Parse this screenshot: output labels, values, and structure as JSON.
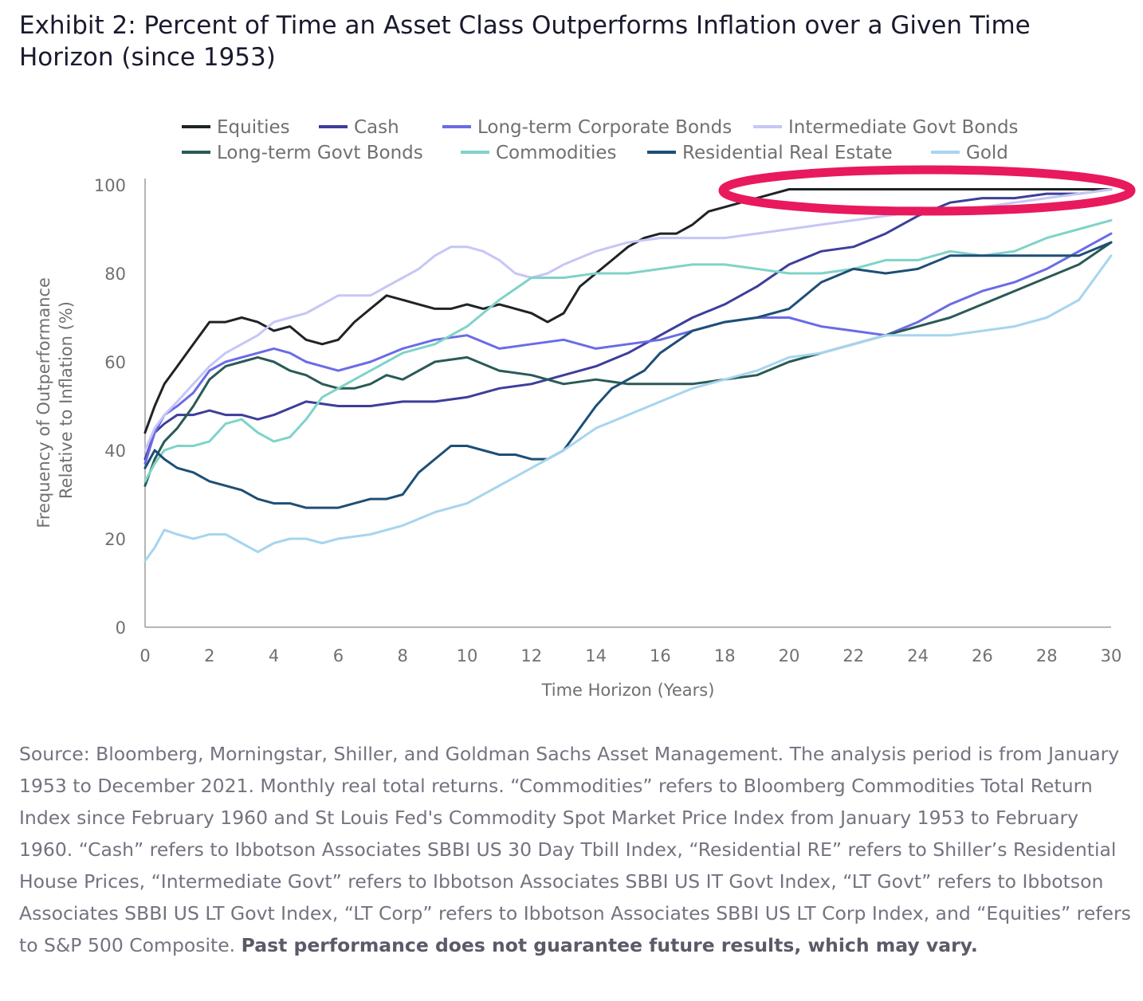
{
  "title": "Exhibit 2: Percent of Time an Asset Class Outperforms Inflation over a Given Time Horizon (since 1953)",
  "source_text": "Source: Bloomberg, Morningstar, Shiller, and Goldman Sachs Asset Management. The analysis period is from January 1953 to December 2021. Monthly real total returns. “Commodities” refers to Bloomberg Commodities Total Return Index since February 1960 and St Louis Fed's Commodity Spot Market Price Index from January 1953 to February 1960. “Cash” refers to Ibbotson Associates SBBI US 30 Day Tbill Index, “Residential RE” refers to Shiller’s Residential House Prices, “Intermediate Govt” refers to Ibbotson Associates SBBI US IT Govt Index, “LT Govt” refers to Ibbotson Associates SBBI US LT Govt Index, “LT Corp” refers to Ibbotson Associates SBBI US LT Corp Index, and “Equities” refers to S&P 500 Composite.",
  "disclaimer_text": "Past performance does not guarantee future results, which may vary.",
  "highlight_color": "#e8195c",
  "chart_data": {
    "type": "line",
    "title": "",
    "xlabel": "Time Horizon (Years)",
    "ylabel": "Frequency of Outperformance Relative to Inflation (%)",
    "ylabel_lines": [
      "Frequency of Outperformance",
      "Relative to Inflation (%)"
    ],
    "xlim": [
      0,
      30
    ],
    "ylim": [
      0,
      100
    ],
    "x_ticks": [
      0,
      2,
      4,
      6,
      8,
      10,
      12,
      14,
      16,
      18,
      20,
      22,
      24,
      26,
      28,
      30
    ],
    "y_ticks": [
      0,
      20,
      40,
      60,
      80,
      100
    ],
    "grid": false,
    "legend_position": "top",
    "highlight": "ellipse around the top lines from about x = 19 to x = 30 near y = 99",
    "series": [
      {
        "name": "Equities",
        "color": "#1f2326",
        "x": [
          0,
          0.3,
          0.6,
          1,
          1.3,
          1.6,
          2,
          2.5,
          3,
          3.5,
          4,
          4.5,
          5,
          5.5,
          6,
          6.5,
          7,
          7.5,
          8,
          8.5,
          9,
          9.5,
          10,
          10.5,
          11,
          11.5,
          12,
          12.5,
          13,
          13.5,
          14,
          14.5,
          15,
          15.5,
          16,
          16.5,
          17,
          17.5,
          18,
          18.5,
          19,
          19.5,
          20,
          22,
          24,
          26,
          28,
          30
        ],
        "y": [
          44,
          50,
          55,
          59,
          62,
          65,
          69,
          69,
          70,
          69,
          67,
          68,
          65,
          64,
          65,
          69,
          72,
          75,
          74,
          73,
          72,
          72,
          73,
          72,
          73,
          72,
          71,
          69,
          71,
          77,
          80,
          83,
          86,
          88,
          89,
          89,
          91,
          94,
          95,
          96,
          97,
          98,
          99,
          99,
          99,
          99,
          99,
          99
        ]
      },
      {
        "name": "Cash",
        "color": "#3d3e9a",
        "x": [
          0,
          0.3,
          0.6,
          1,
          1.5,
          2,
          2.5,
          3,
          3.5,
          4,
          5,
          6,
          7,
          8,
          9,
          10,
          11,
          12,
          13,
          14,
          15,
          16,
          17,
          18,
          19,
          20,
          21,
          22,
          23,
          24,
          25,
          26,
          27,
          28,
          29,
          30
        ],
        "y": [
          38,
          44,
          46,
          48,
          48,
          49,
          48,
          48,
          47,
          48,
          51,
          50,
          50,
          51,
          51,
          52,
          54,
          55,
          57,
          59,
          62,
          66,
          70,
          73,
          77,
          82,
          85,
          86,
          89,
          93,
          96,
          97,
          97,
          98,
          98,
          99
        ]
      },
      {
        "name": "Long-term Corporate Bonds",
        "color": "#6b6be6",
        "x": [
          0,
          0.3,
          0.6,
          1,
          1.5,
          2,
          2.5,
          3,
          3.5,
          4,
          4.5,
          5,
          5.5,
          6,
          7,
          8,
          9,
          10,
          11,
          12,
          13,
          14,
          15,
          16,
          17,
          18,
          19,
          20,
          21,
          22,
          23,
          24,
          25,
          26,
          27,
          28,
          29,
          30
        ],
        "y": [
          37,
          44,
          48,
          50,
          53,
          58,
          60,
          61,
          62,
          63,
          62,
          60,
          59,
          58,
          60,
          63,
          65,
          66,
          63,
          64,
          65,
          63,
          64,
          65,
          67,
          69,
          70,
          70,
          68,
          67,
          66,
          69,
          73,
          76,
          78,
          81,
          85,
          89
        ]
      },
      {
        "name": "Intermediate Govt Bonds",
        "color": "#c6c6f6",
        "x": [
          0,
          0.3,
          0.6,
          1,
          1.5,
          2,
          2.5,
          3,
          3.5,
          4,
          4.5,
          5,
          5.5,
          6,
          6.5,
          7,
          7.5,
          8,
          8.5,
          9,
          9.5,
          10,
          10.5,
          11,
          11.5,
          12,
          12.5,
          13,
          14,
          15,
          16,
          17,
          18,
          19,
          20,
          21,
          22,
          23,
          24,
          25,
          26,
          27,
          28,
          29,
          30
        ],
        "y": [
          40,
          45,
          48,
          51,
          55,
          59,
          62,
          64,
          66,
          69,
          70,
          71,
          73,
          75,
          75,
          75,
          77,
          79,
          81,
          84,
          86,
          86,
          85,
          83,
          80,
          79,
          80,
          82,
          85,
          87,
          88,
          88,
          88,
          89,
          90,
          91,
          92,
          93,
          94,
          94,
          95,
          96,
          97,
          98,
          99
        ]
      },
      {
        "name": "Long-term Govt Bonds",
        "color": "#2a5a56",
        "x": [
          0,
          0.3,
          0.6,
          1,
          1.5,
          2,
          2.5,
          3,
          3.5,
          4,
          4.5,
          5,
          5.5,
          6,
          6.5,
          7,
          7.5,
          8,
          9,
          10,
          11,
          12,
          13,
          14,
          15,
          16,
          17,
          18,
          19,
          20,
          21,
          22,
          23,
          24,
          25,
          26,
          27,
          28,
          29,
          30
        ],
        "y": [
          32,
          38,
          42,
          45,
          50,
          56,
          59,
          60,
          61,
          60,
          58,
          57,
          55,
          54,
          54,
          55,
          57,
          56,
          60,
          61,
          58,
          57,
          55,
          56,
          55,
          55,
          55,
          56,
          57,
          60,
          62,
          64,
          66,
          68,
          70,
          73,
          76,
          79,
          82,
          87
        ]
      },
      {
        "name": "Commodities",
        "color": "#7fd3c8",
        "x": [
          0,
          0.3,
          0.6,
          1,
          1.5,
          2,
          2.5,
          3,
          3.5,
          4,
          4.5,
          5,
          5.5,
          6,
          7,
          8,
          9,
          10,
          11,
          12,
          13,
          14,
          15,
          16,
          17,
          18,
          19,
          20,
          21,
          22,
          23,
          24,
          25,
          26,
          27,
          28,
          29,
          30
        ],
        "y": [
          33,
          37,
          40,
          41,
          41,
          42,
          46,
          47,
          44,
          42,
          43,
          47,
          52,
          54,
          58,
          62,
          64,
          68,
          74,
          79,
          79,
          80,
          80,
          81,
          82,
          82,
          81,
          80,
          80,
          81,
          83,
          83,
          85,
          84,
          85,
          88,
          90,
          92
        ]
      },
      {
        "name": "Residential Real Estate",
        "color": "#1d4f76",
        "x": [
          0,
          0.3,
          0.6,
          1,
          1.5,
          2,
          2.5,
          3,
          3.5,
          4,
          4.5,
          5,
          5.5,
          6,
          6.5,
          7,
          7.5,
          8,
          8.5,
          9,
          9.5,
          10,
          10.5,
          11,
          11.5,
          12,
          12.5,
          13,
          13.5,
          14,
          14.5,
          15,
          15.5,
          16,
          17,
          18,
          19,
          20,
          21,
          22,
          23,
          24,
          25,
          26,
          27,
          28,
          29,
          30
        ],
        "y": [
          36,
          40,
          38,
          36,
          35,
          33,
          32,
          31,
          29,
          28,
          28,
          27,
          27,
          27,
          28,
          29,
          29,
          30,
          35,
          38,
          41,
          41,
          40,
          39,
          39,
          38,
          38,
          40,
          45,
          50,
          54,
          56,
          58,
          62,
          67,
          69,
          70,
          72,
          78,
          81,
          80,
          81,
          84,
          84,
          84,
          84,
          84,
          87
        ]
      },
      {
        "name": "Gold",
        "color": "#a6d5ef",
        "x": [
          0,
          0.3,
          0.6,
          1,
          1.5,
          2,
          2.5,
          3,
          3.5,
          4,
          4.5,
          5,
          5.5,
          6,
          7,
          8,
          9,
          10,
          11,
          12,
          13,
          14,
          15,
          16,
          17,
          18,
          19,
          20,
          21,
          22,
          23,
          24,
          25,
          26,
          27,
          28,
          29,
          30
        ],
        "y": [
          15,
          18,
          22,
          21,
          20,
          21,
          21,
          19,
          17,
          19,
          20,
          20,
          19,
          20,
          21,
          23,
          26,
          28,
          32,
          36,
          40,
          45,
          48,
          51,
          54,
          56,
          58,
          61,
          62,
          64,
          66,
          66,
          66,
          67,
          68,
          70,
          74,
          84
        ]
      }
    ]
  }
}
